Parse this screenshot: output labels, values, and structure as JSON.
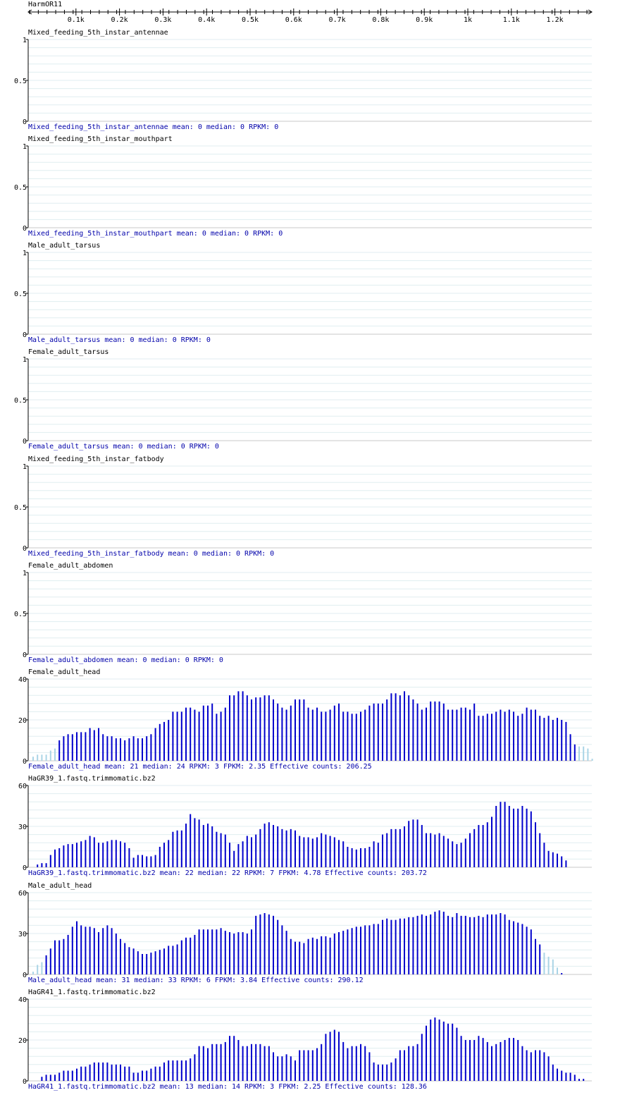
{
  "ruler": {
    "title": "HarmOR11",
    "ticks": [
      "0.1k",
      "0.2k",
      "0.3k",
      "0.4k",
      "0.5k",
      "0.6k",
      "0.7k",
      "0.8k",
      "0.9k",
      "1k",
      "1.1k",
      "1.2k"
    ]
  },
  "colors": {
    "bar": "#0000cc",
    "bar_light": "#aad4e6",
    "grid": "#e0eef0",
    "caption": "#0000aa",
    "text": "#000000"
  },
  "chart_data": [
    {
      "type": "bar",
      "title": "Mixed_feeding_5th_instar_antennae",
      "caption": "Mixed_feeding_5th_instar_antennae mean: 0 median: 0 RPKM: 0",
      "yticks": [
        "1",
        "0.5",
        "0"
      ],
      "ylim": [
        0,
        1
      ],
      "values": [],
      "light": []
    },
    {
      "type": "bar",
      "title": "Mixed_feeding_5th_instar_mouthpart",
      "caption": "Mixed_feeding_5th_instar_mouthpart mean: 0 median: 0 RPKM: 0",
      "yticks": [
        "1",
        "0.5",
        "0"
      ],
      "ylim": [
        0,
        1
      ],
      "values": [],
      "light": []
    },
    {
      "type": "bar",
      "title": "Male_adult_tarsus",
      "caption": "Male_adult_tarsus mean: 0 median: 0 RPKM: 0",
      "yticks": [
        "1",
        "0.5",
        "0"
      ],
      "ylim": [
        0,
        1
      ],
      "values": [],
      "light": []
    },
    {
      "type": "bar",
      "title": "Female_adult_tarsus",
      "caption": "Female_adult_tarsus mean: 0 median: 0 RPKM: 0",
      "yticks": [
        "1",
        "0.5",
        "0"
      ],
      "ylim": [
        0,
        1
      ],
      "values": [],
      "light": []
    },
    {
      "type": "bar",
      "title": "Mixed_feeding_5th_instar_fatbody",
      "caption": "Mixed_feeding_5th_instar_fatbody mean: 0 median: 0 RPKM: 0",
      "yticks": [
        "1",
        "0.5",
        "0"
      ],
      "ylim": [
        0,
        1
      ],
      "values": [],
      "light": []
    },
    {
      "type": "bar",
      "title": "Female_adult_abdomen",
      "caption": "Female_adult_abdomen mean: 0 median: 0 RPKM: 0",
      "yticks": [
        "1",
        "0.5",
        "0"
      ],
      "ylim": [
        0,
        1
      ],
      "values": [],
      "light": []
    },
    {
      "type": "bar",
      "title": "Female_adult_head",
      "caption": "Female_adult_head mean: 21 median: 24 RPKM: 3 FPKM: 2.35 Effective counts: 206.25",
      "yticks": [
        "40",
        "20",
        "0"
      ],
      "ylim": [
        0,
        40
      ],
      "values": [
        2,
        3,
        3,
        3,
        5,
        6,
        10,
        12,
        13,
        13,
        14,
        14,
        14,
        16,
        15,
        16,
        13,
        12,
        12,
        11,
        11,
        10,
        11,
        12,
        11,
        11,
        12,
        13,
        16,
        18,
        19,
        20,
        24,
        24,
        24,
        26,
        26,
        25,
        24,
        27,
        27,
        28,
        23,
        24,
        26,
        32,
        32,
        34,
        34,
        32,
        30,
        31,
        31,
        32,
        32,
        30,
        28,
        26,
        25,
        27,
        30,
        30,
        30,
        26,
        25,
        26,
        24,
        24,
        25,
        27,
        28,
        24,
        24,
        23,
        23,
        24,
        25,
        27,
        28,
        28,
        28,
        30,
        33,
        33,
        32,
        34,
        32,
        30,
        28,
        25,
        26,
        29,
        29,
        29,
        28,
        25,
        25,
        25,
        26,
        26,
        25,
        28,
        22,
        22,
        23,
        23,
        24,
        25,
        24,
        25,
        24,
        22,
        23,
        26,
        25,
        25,
        22,
        21,
        22,
        20,
        21,
        20,
        19,
        13,
        8,
        7,
        7,
        6,
        1
      ],
      "light": [
        0,
        1,
        2,
        3,
        4,
        5,
        125,
        126,
        127,
        128
      ]
    },
    {
      "type": "bar",
      "title": "HaGR39_1.fastq.trimmomatic.bz2",
      "caption": "HaGR39_1.fastq.trimmomatic.bz2 mean: 22 median: 22 RPKM: 7 FPKM: 4.78 Effective counts: 203.72",
      "yticks": [
        "60",
        "30",
        "0"
      ],
      "ylim": [
        0,
        60
      ],
      "values": [
        0,
        2,
        3,
        3,
        9,
        13,
        14,
        16,
        17,
        17,
        18,
        19,
        20,
        23,
        22,
        18,
        18,
        19,
        20,
        20,
        19,
        18,
        14,
        7,
        9,
        9,
        8,
        8,
        9,
        15,
        18,
        20,
        26,
        27,
        27,
        32,
        39,
        36,
        35,
        31,
        32,
        30,
        26,
        25,
        24,
        18,
        12,
        17,
        19,
        23,
        22,
        24,
        28,
        32,
        33,
        31,
        30,
        28,
        27,
        28,
        27,
        23,
        22,
        22,
        21,
        22,
        25,
        24,
        23,
        22,
        20,
        19,
        15,
        14,
        13,
        14,
        14,
        15,
        19,
        18,
        24,
        25,
        28,
        28,
        28,
        30,
        34,
        35,
        35,
        31,
        25,
        25,
        24,
        25,
        23,
        21,
        19,
        17,
        18,
        21,
        25,
        28,
        31,
        31,
        33,
        37,
        45,
        48,
        48,
        45,
        43,
        43,
        45,
        43,
        41,
        33,
        25,
        18,
        12,
        11,
        10,
        8,
        5
      ],
      "light": [
        0
      ]
    },
    {
      "type": "bar",
      "title": "Male_adult_head",
      "caption": "Male_adult_head mean: 31 median: 33 RPKM: 6 FPKM: 3.84 Effective counts: 290.12",
      "yticks": [
        "60",
        "30",
        "0"
      ],
      "ylim": [
        0,
        60
      ],
      "values": [
        2,
        7,
        9,
        14,
        19,
        25,
        25,
        26,
        29,
        35,
        39,
        36,
        35,
        35,
        34,
        31,
        34,
        36,
        34,
        30,
        26,
        23,
        20,
        19,
        17,
        15,
        15,
        16,
        17,
        18,
        19,
        21,
        21,
        22,
        25,
        27,
        27,
        29,
        33,
        33,
        33,
        33,
        33,
        34,
        32,
        31,
        30,
        31,
        31,
        30,
        33,
        43,
        44,
        45,
        44,
        43,
        40,
        36,
        32,
        26,
        24,
        24,
        23,
        26,
        27,
        26,
        28,
        28,
        27,
        30,
        31,
        32,
        33,
        34,
        35,
        35,
        36,
        36,
        37,
        37,
        40,
        41,
        40,
        40,
        41,
        41,
        42,
        42,
        43,
        44,
        43,
        44,
        46,
        47,
        46,
        43,
        42,
        45,
        43,
        43,
        42,
        42,
        43,
        42,
        44,
        44,
        44,
        45,
        44,
        40,
        39,
        38,
        37,
        35,
        33,
        26,
        22,
        16,
        13,
        11,
        5,
        1
      ],
      "light": [
        0,
        1,
        2,
        117,
        118,
        119,
        120
      ]
    },
    {
      "type": "bar",
      "title": "HaGR41_1.fastq.trimmomatic.bz2",
      "caption": "HaGR41_1.fastq.trimmomatic.bz2 mean: 13 median: 14 RPKM: 3 FPKM: 2.25 Effective counts: 128.36",
      "yticks": [
        "40",
        "20",
        "0"
      ],
      "ylim": [
        0,
        40
      ],
      "values": [
        0,
        0,
        2,
        3,
        3,
        3,
        4,
        5,
        5,
        5,
        6,
        7,
        7,
        8,
        9,
        9,
        9,
        9,
        8,
        8,
        8,
        7,
        7,
        4,
        4,
        5,
        5,
        6,
        7,
        7,
        9,
        10,
        10,
        10,
        10,
        10,
        11,
        13,
        17,
        17,
        16,
        18,
        18,
        18,
        19,
        22,
        22,
        20,
        17,
        17,
        18,
        18,
        18,
        17,
        17,
        14,
        12,
        12,
        13,
        12,
        10,
        15,
        15,
        15,
        15,
        16,
        18,
        23,
        24,
        25,
        24,
        19,
        16,
        17,
        17,
        18,
        17,
        14,
        9,
        8,
        8,
        8,
        9,
        11,
        15,
        15,
        17,
        17,
        18,
        23,
        27,
        30,
        31,
        30,
        29,
        28,
        28,
        26,
        22,
        20,
        20,
        20,
        22,
        21,
        19,
        17,
        18,
        19,
        20,
        21,
        21,
        20,
        17,
        15,
        14,
        15,
        15,
        14,
        12,
        8,
        6,
        5,
        4,
        4,
        3,
        1,
        1
      ],
      "light": []
    }
  ]
}
